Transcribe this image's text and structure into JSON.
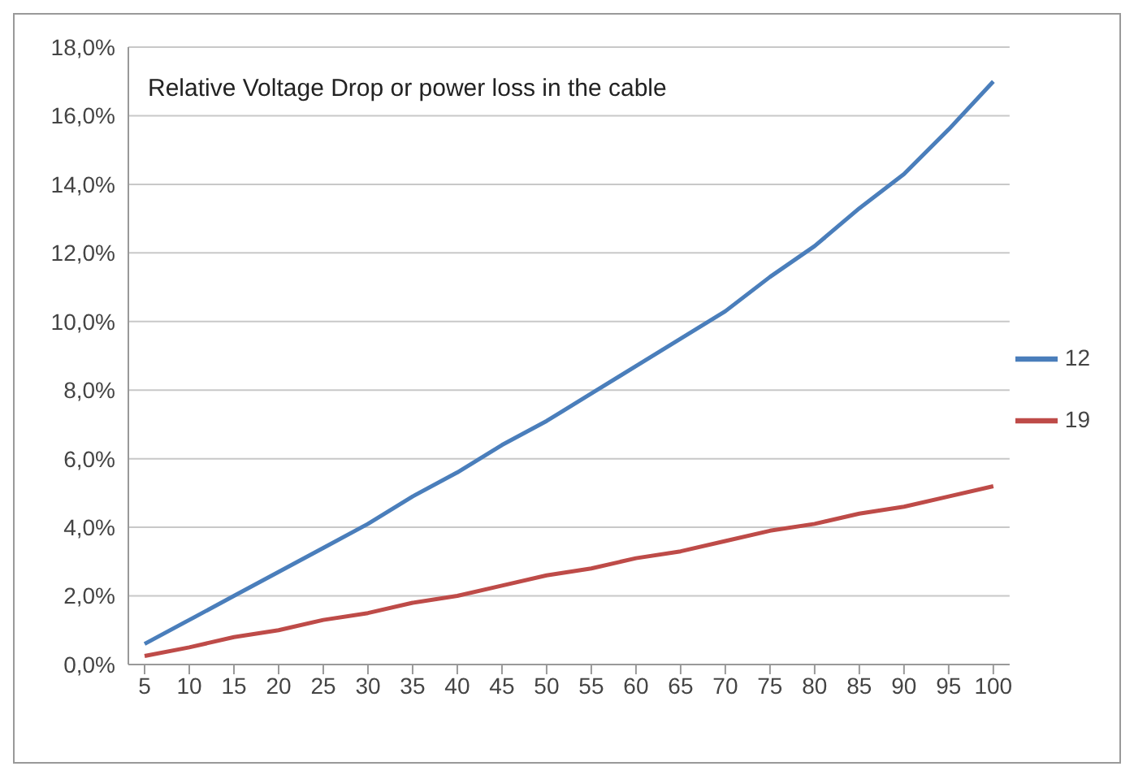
{
  "chart_data": {
    "type": "line",
    "title": "Relative Voltage Drop or power loss in the cable",
    "categories": [
      "5",
      "10",
      "15",
      "20",
      "25",
      "30",
      "35",
      "40",
      "45",
      "50",
      "55",
      "60",
      "65",
      "70",
      "75",
      "80",
      "85",
      "90",
      "95",
      "100"
    ],
    "series": [
      {
        "name": "12",
        "color": "#4a7ebb",
        "values": [
          0.6,
          1.3,
          2.0,
          2.7,
          3.4,
          4.1,
          4.9,
          5.6,
          6.4,
          7.1,
          7.9,
          8.7,
          9.5,
          10.3,
          11.3,
          12.2,
          13.3,
          14.3,
          15.6,
          17.0
        ]
      },
      {
        "name": "19",
        "color": "#be4b48",
        "values": [
          0.25,
          0.5,
          0.8,
          1.0,
          1.3,
          1.5,
          1.8,
          2.0,
          2.3,
          2.6,
          2.8,
          3.1,
          3.3,
          3.6,
          3.9,
          4.1,
          4.4,
          4.6,
          4.9,
          5.2
        ]
      }
    ],
    "ylim": [
      0,
      18
    ],
    "yticks": [
      {
        "value": 0,
        "label": "0,0%"
      },
      {
        "value": 2,
        "label": "2,0%"
      },
      {
        "value": 4,
        "label": "4,0%"
      },
      {
        "value": 6,
        "label": "6,0%"
      },
      {
        "value": 8,
        "label": "8,0%"
      },
      {
        "value": 10,
        "label": "10,0%"
      },
      {
        "value": 12,
        "label": "12,0%"
      },
      {
        "value": 14,
        "label": "14,0%"
      },
      {
        "value": 16,
        "label": "16,0%"
      },
      {
        "value": 18,
        "label": "18,0%"
      }
    ],
    "grid": "y",
    "legend": "right",
    "marker": "none",
    "line_style": "solid"
  }
}
